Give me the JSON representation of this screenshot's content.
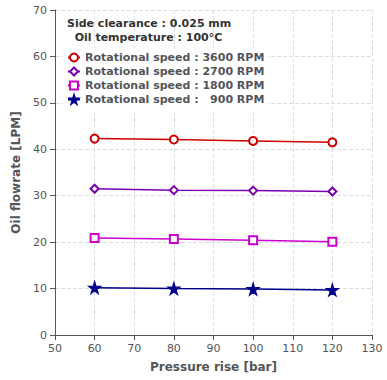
{
  "chart_data": {
    "type": "line",
    "x": [
      60,
      80,
      100,
      120
    ],
    "series": [
      {
        "name": "Rotational speed : 3600 RPM",
        "color": "#cc0000",
        "marker": "circle",
        "values": [
          42.3,
          42.1,
          41.8,
          41.5
        ]
      },
      {
        "name": "Rotational speed : 2700 RPM",
        "color": "#7b00b0",
        "marker": "diamond",
        "values": [
          31.5,
          31.2,
          31.1,
          30.9
        ]
      },
      {
        "name": "Rotational speed : 1800 RPM",
        "color": "#cc00cc",
        "marker": "square",
        "values": [
          20.9,
          20.7,
          20.4,
          20.1
        ]
      },
      {
        "name": "Rotational speed :   900 RPM",
        "color": "#00008b",
        "marker": "star",
        "values": [
          10.2,
          10.0,
          9.9,
          9.7
        ]
      }
    ],
    "xlabel": "Pressure rise [bar]",
    "ylabel": "Oil flowrate [LPM]",
    "annotations": [
      "Side clearance : 0.025 mm",
      "  Oil temperature : 100°C"
    ],
    "xlim": [
      50,
      130
    ],
    "ylim": [
      0,
      70
    ],
    "xticks": [
      50,
      60,
      70,
      80,
      90,
      100,
      110,
      120,
      130
    ],
    "yticks": [
      0,
      10,
      20,
      30,
      40,
      50,
      60,
      70
    ],
    "grid": true,
    "legend": "upper left",
    "line_style": "solid"
  }
}
